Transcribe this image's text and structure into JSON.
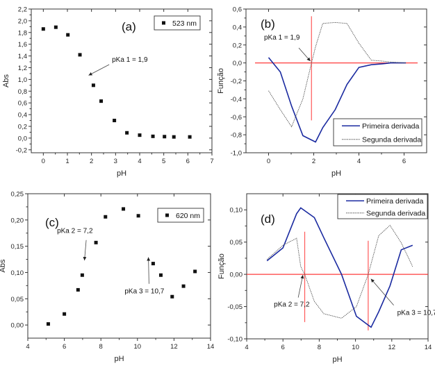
{
  "colors": {
    "frame": "#333333",
    "marker": "#111111",
    "first_derivative": "#1a2aa0",
    "second_derivative": "#555555",
    "guide": "#ff3b3b"
  },
  "chart_data": [
    {
      "id": "a",
      "type": "scatter",
      "panel_label": "(a)",
      "xlabel": "pH",
      "ylabel": "Abs",
      "xlim": [
        -0.5,
        7
      ],
      "ylim": [
        -0.25,
        2.2
      ],
      "xticks": [
        0,
        1,
        2,
        3,
        4,
        5,
        6,
        7
      ],
      "xtick_labels": [
        "0",
        "1",
        "2",
        "3",
        "4",
        "5",
        "6",
        "7"
      ],
      "yticks": [
        -0.2,
        0.0,
        0.2,
        0.4,
        0.6,
        0.8,
        1.0,
        1.2,
        1.4,
        1.6,
        1.8,
        2.0,
        2.2
      ],
      "ytick_labels": [
        "-0,2",
        "0,0",
        "0,2",
        "0,4",
        "0,6",
        "0,8",
        "1,0",
        "1,2",
        "1,4",
        "1,6",
        "1,8",
        "2,0",
        "2,2"
      ],
      "legend": {
        "entries": [
          "523 nm"
        ],
        "placement": "top-right"
      },
      "series": [
        {
          "name": "523 nm",
          "x": [
            0.0,
            0.52,
            1.02,
            1.52,
            2.08,
            2.4,
            2.95,
            3.47,
            4.0,
            4.55,
            5.03,
            5.42,
            6.08
          ],
          "y": [
            1.86,
            1.89,
            1.76,
            1.42,
            0.9,
            0.63,
            0.3,
            0.09,
            0.05,
            0.03,
            0.025,
            0.02,
            0.02
          ]
        }
      ],
      "annotations": [
        {
          "text": "pKa 1 = 1,9",
          "x": 2.85,
          "y": 1.3,
          "arrow_to": [
            1.88,
            1.07
          ]
        }
      ]
    },
    {
      "id": "b",
      "type": "line",
      "panel_label": "(b)",
      "xlabel": "pH",
      "ylabel": "Função",
      "xlim": [
        -1,
        7
      ],
      "ylim": [
        -1.0,
        0.6
      ],
      "xticks": [
        0,
        2,
        4,
        6
      ],
      "xtick_labels": [
        "0",
        "2",
        "4",
        "6"
      ],
      "yticks": [
        -1.0,
        -0.8,
        -0.6,
        -0.4,
        -0.2,
        0.0,
        0.2,
        0.4,
        0.6
      ],
      "ytick_labels": [
        "-1,0",
        "-0,8",
        "-0,6",
        "-0,4",
        "-0,2",
        "0,0",
        "0,2",
        "0,4",
        "0,6"
      ],
      "legend": {
        "entries": [
          "Primeira derivada",
          "Segunda derivada"
        ],
        "placement": "bottom-right"
      },
      "series": [
        {
          "name": "Primeira derivada",
          "style": "solid",
          "x": [
            0.0,
            0.52,
            1.02,
            1.52,
            2.08,
            2.4,
            2.95,
            3.47,
            4.0,
            4.55,
            5.03,
            5.42,
            6.08
          ],
          "y": [
            0.06,
            -0.1,
            -0.48,
            -0.81,
            -0.88,
            -0.72,
            -0.52,
            -0.24,
            -0.05,
            -0.02,
            -0.01,
            0.0,
            0.0
          ]
        },
        {
          "name": "Segunda derivada",
          "style": "dotted",
          "x": [
            0.0,
            0.52,
            1.02,
            1.52,
            1.9,
            2.08,
            2.4,
            2.95,
            3.47,
            4.0,
            4.55,
            5.03,
            5.42,
            6.08
          ],
          "y": [
            -0.31,
            -0.52,
            -0.71,
            -0.4,
            0.0,
            0.18,
            0.44,
            0.45,
            0.44,
            0.22,
            0.03,
            0.02,
            0.01,
            0.0
          ]
        }
      ],
      "guides": {
        "horizontal_y": 0.0,
        "vertical_x": 1.9,
        "vertical_range": [
          -0.64,
          0.52
        ]
      },
      "annotations": [
        {
          "text": "pKa 1 = 1,9",
          "x": -0.2,
          "y": 0.26,
          "arrow_to": [
            1.85,
            0.02
          ]
        }
      ]
    },
    {
      "id": "c",
      "type": "scatter",
      "panel_label": "(c)",
      "xlabel": "pH",
      "ylabel": "Abs",
      "xlim": [
        4,
        14
      ],
      "ylim": [
        -0.025,
        0.25
      ],
      "xticks": [
        4,
        6,
        8,
        10,
        12,
        14
      ],
      "xtick_labels": [
        "4",
        "6",
        "8",
        "10",
        "12",
        "14"
      ],
      "yticks": [
        0.0,
        0.05,
        0.1,
        0.15,
        0.2,
        0.25
      ],
      "ytick_labels": [
        "0,00",
        "0,05",
        "0,10",
        "0,15",
        "0,20",
        "0,25"
      ],
      "legend": {
        "entries": [
          "620 nm"
        ],
        "placement": "top-right"
      },
      "series": [
        {
          "name": "620 nm",
          "x": [
            5.12,
            6.0,
            6.75,
            6.98,
            7.73,
            8.25,
            9.23,
            10.05,
            10.86,
            11.28,
            11.9,
            12.52,
            13.15
          ],
          "y": [
            0.002,
            0.021,
            0.067,
            0.095,
            0.157,
            0.206,
            0.221,
            0.208,
            0.117,
            0.095,
            0.054,
            0.074,
            0.102
          ]
        }
      ],
      "annotations": [
        {
          "text": "pKa 2 = 7,2",
          "x": 5.6,
          "y": 0.175,
          "arrow_to": [
            7.1,
            0.123
          ]
        },
        {
          "text": "pKa 3 = 10,7",
          "x": 9.3,
          "y": 0.06,
          "arrow_to": [
            10.6,
            0.129
          ]
        }
      ]
    },
    {
      "id": "d",
      "type": "line",
      "panel_label": "(d)",
      "xlabel": "pH",
      "ylabel": "Função",
      "xlim": [
        4,
        14
      ],
      "ylim": [
        -0.1,
        0.125
      ],
      "xticks": [
        4,
        6,
        8,
        10,
        12,
        14
      ],
      "xtick_labels": [
        "4",
        "6",
        "8",
        "10",
        "12",
        "14"
      ],
      "yticks": [
        -0.1,
        -0.05,
        0.0,
        0.05,
        0.1
      ],
      "ytick_labels": [
        "-0,10",
        "-0,05",
        "0,00",
        "0,05",
        "0,10"
      ],
      "legend": {
        "entries": [
          "Primeira derivada",
          "Segunda derivada"
        ],
        "placement": "top-right"
      },
      "series": [
        {
          "name": "Primeira derivada",
          "style": "solid",
          "x": [
            5.12,
            6.0,
            6.75,
            6.98,
            7.73,
            8.25,
            9.23,
            10.05,
            10.86,
            11.28,
            11.9,
            12.52,
            13.15
          ],
          "y": [
            0.021,
            0.041,
            0.094,
            0.103,
            0.088,
            0.057,
            0.0,
            -0.065,
            -0.082,
            -0.058,
            -0.018,
            0.038,
            0.045
          ]
        },
        {
          "name": "Segunda derivada",
          "style": "dotted",
          "x": [
            5.12,
            6.0,
            6.75,
            6.98,
            7.2,
            7.73,
            8.25,
            9.23,
            10.05,
            10.7,
            11.28,
            11.9,
            12.52,
            13.15
          ],
          "y": [
            0.023,
            0.045,
            0.056,
            0.012,
            0.0,
            -0.042,
            -0.061,
            -0.068,
            -0.05,
            0.0,
            0.06,
            0.076,
            0.049,
            0.012
          ]
        }
      ],
      "guides": {
        "horizontal_y": 0.0,
        "verticals": [
          {
            "x": 7.2,
            "range": [
              -0.074,
              0.066
            ]
          },
          {
            "x": 10.7,
            "range": [
              -0.087,
              0.052
            ]
          }
        ]
      },
      "annotations": [
        {
          "text": "pKa 2 = 7,2",
          "x": 5.5,
          "y": -0.05,
          "arrow_to": [
            7.1,
            -0.001
          ]
        },
        {
          "text": "pKa 3 = 10,7",
          "x": 12.3,
          "y": -0.063,
          "arrow_to": [
            10.85,
            -0.007
          ]
        }
      ]
    }
  ]
}
